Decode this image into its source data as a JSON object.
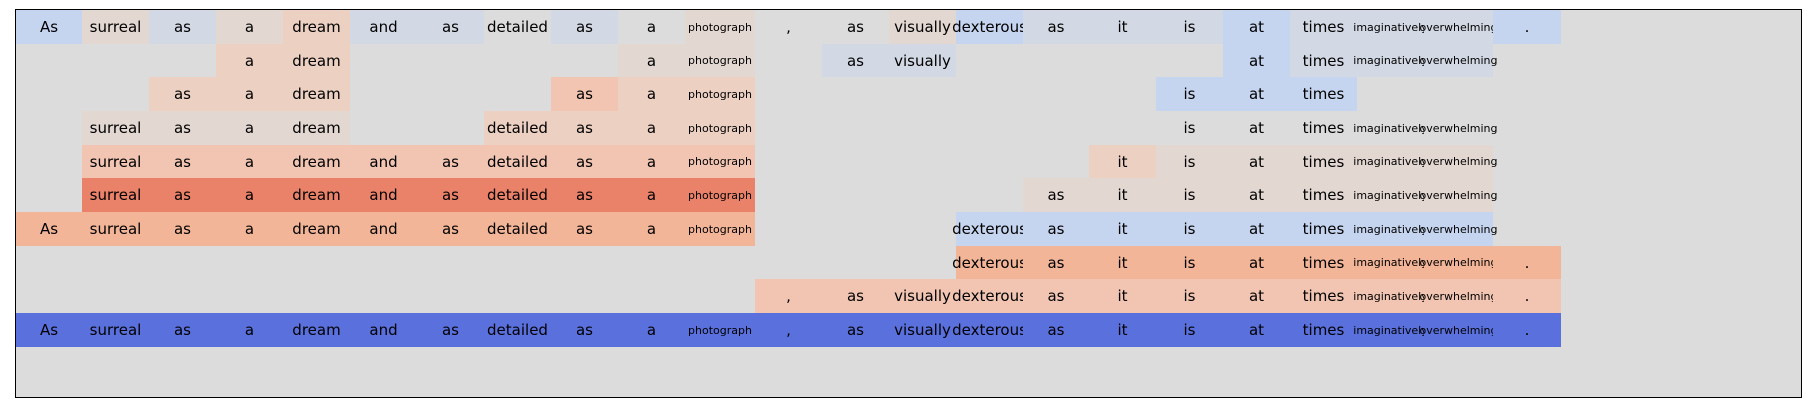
{
  "tokens": [
    "As",
    "surreal",
    "as",
    "a",
    "dream",
    "and",
    "as",
    "detailed",
    "as",
    "a",
    "photograph",
    ",",
    "as",
    "visually",
    "dexterous",
    "as",
    "it",
    "is",
    "at",
    "times",
    "imaginatively",
    "overwhelming",
    "."
  ],
  "palette": {
    "grey": "#dcdcdc",
    "lightBlue": "#c5d4ef",
    "paleBlue": "#d3d9e4",
    "paleOrange": "#e3d7d1",
    "lightOrange": "#ecd0c2",
    "orange": "#f1c5b2",
    "midOrange": "#f3b598",
    "deepOrange": "#ea826a",
    "strongBlue": "#5a70dd"
  },
  "rows": [
    {
      "cells": [
        {
          "col": 0,
          "color": "lightBlue"
        },
        {
          "col": 1,
          "color": "paleOrange"
        },
        {
          "col": 2,
          "color": "paleBlue"
        },
        {
          "col": 3,
          "color": "paleOrange"
        },
        {
          "col": 4,
          "color": "lightOrange"
        },
        {
          "col": 5,
          "color": "paleBlue"
        },
        {
          "col": 6,
          "color": "paleBlue"
        },
        {
          "col": 7,
          "color": "grey"
        },
        {
          "col": 8,
          "color": "paleBlue"
        },
        {
          "col": 9,
          "color": "grey"
        },
        {
          "col": 10,
          "color": "paleOrange"
        },
        {
          "col": 11,
          "color": "grey"
        },
        {
          "col": 12,
          "color": "grey"
        },
        {
          "col": 13,
          "color": "paleOrange"
        },
        {
          "col": 14,
          "color": "lightBlue"
        },
        {
          "col": 15,
          "color": "paleBlue"
        },
        {
          "col": 16,
          "color": "paleBlue"
        },
        {
          "col": 17,
          "color": "paleBlue"
        },
        {
          "col": 18,
          "color": "lightBlue"
        },
        {
          "col": 19,
          "color": "paleBlue"
        },
        {
          "col": 20,
          "color": "paleBlue"
        },
        {
          "col": 21,
          "color": "paleBlue"
        },
        {
          "col": 22,
          "color": "lightBlue"
        }
      ]
    },
    {
      "cells": [
        {
          "col": 3,
          "color": "lightOrange"
        },
        {
          "col": 4,
          "color": "lightOrange"
        },
        {
          "col": 9,
          "color": "paleOrange"
        },
        {
          "col": 10,
          "color": "paleOrange"
        },
        {
          "col": 12,
          "color": "paleBlue"
        },
        {
          "col": 13,
          "color": "paleBlue"
        },
        {
          "col": 18,
          "color": "lightBlue"
        },
        {
          "col": 19,
          "color": "paleBlue"
        },
        {
          "col": 20,
          "color": "paleBlue"
        },
        {
          "col": 21,
          "color": "paleBlue"
        }
      ]
    },
    {
      "cells": [
        {
          "col": 2,
          "color": "lightOrange"
        },
        {
          "col": 3,
          "color": "lightOrange"
        },
        {
          "col": 4,
          "color": "lightOrange"
        },
        {
          "col": 8,
          "color": "orange"
        },
        {
          "col": 9,
          "color": "lightOrange"
        },
        {
          "col": 10,
          "color": "lightOrange"
        },
        {
          "col": 17,
          "color": "lightBlue"
        },
        {
          "col": 18,
          "color": "lightBlue"
        },
        {
          "col": 19,
          "color": "lightBlue"
        }
      ]
    },
    {
      "cells": [
        {
          "col": 1,
          "color": "paleOrange"
        },
        {
          "col": 2,
          "color": "paleOrange"
        },
        {
          "col": 3,
          "color": "paleOrange"
        },
        {
          "col": 4,
          "color": "paleOrange"
        },
        {
          "col": 7,
          "color": "lightOrange"
        },
        {
          "col": 8,
          "color": "lightOrange"
        },
        {
          "col": 9,
          "color": "lightOrange"
        },
        {
          "col": 10,
          "color": "lightOrange"
        },
        {
          "col": 17,
          "color": "grey"
        },
        {
          "col": 18,
          "color": "grey"
        },
        {
          "col": 19,
          "color": "grey"
        },
        {
          "col": 20,
          "color": "grey"
        },
        {
          "col": 21,
          "color": "grey"
        }
      ]
    },
    {
      "cells": [
        {
          "col": 1,
          "color": "orange"
        },
        {
          "col": 2,
          "color": "orange"
        },
        {
          "col": 3,
          "color": "orange"
        },
        {
          "col": 4,
          "color": "orange"
        },
        {
          "col": 5,
          "color": "orange"
        },
        {
          "col": 6,
          "color": "orange"
        },
        {
          "col": 7,
          "color": "orange"
        },
        {
          "col": 8,
          "color": "orange"
        },
        {
          "col": 9,
          "color": "orange"
        },
        {
          "col": 10,
          "color": "orange"
        },
        {
          "col": 16,
          "color": "lightOrange"
        },
        {
          "col": 17,
          "color": "paleOrange"
        },
        {
          "col": 18,
          "color": "paleOrange"
        },
        {
          "col": 19,
          "color": "paleOrange"
        },
        {
          "col": 20,
          "color": "paleOrange"
        },
        {
          "col": 21,
          "color": "paleOrange"
        }
      ]
    },
    {
      "cells": [
        {
          "col": 1,
          "color": "deepOrange"
        },
        {
          "col": 2,
          "color": "deepOrange"
        },
        {
          "col": 3,
          "color": "deepOrange"
        },
        {
          "col": 4,
          "color": "deepOrange"
        },
        {
          "col": 5,
          "color": "deepOrange"
        },
        {
          "col": 6,
          "color": "deepOrange"
        },
        {
          "col": 7,
          "color": "deepOrange"
        },
        {
          "col": 8,
          "color": "deepOrange"
        },
        {
          "col": 9,
          "color": "deepOrange"
        },
        {
          "col": 10,
          "color": "deepOrange"
        },
        {
          "col": 15,
          "color": "paleOrange"
        },
        {
          "col": 16,
          "color": "paleOrange"
        },
        {
          "col": 17,
          "color": "paleOrange"
        },
        {
          "col": 18,
          "color": "paleOrange"
        },
        {
          "col": 19,
          "color": "paleOrange"
        },
        {
          "col": 20,
          "color": "paleOrange"
        },
        {
          "col": 21,
          "color": "paleOrange"
        }
      ]
    },
    {
      "cells": [
        {
          "col": 0,
          "color": "midOrange"
        },
        {
          "col": 1,
          "color": "midOrange"
        },
        {
          "col": 2,
          "color": "midOrange"
        },
        {
          "col": 3,
          "color": "midOrange"
        },
        {
          "col": 4,
          "color": "midOrange"
        },
        {
          "col": 5,
          "color": "midOrange"
        },
        {
          "col": 6,
          "color": "midOrange"
        },
        {
          "col": 7,
          "color": "midOrange"
        },
        {
          "col": 8,
          "color": "midOrange"
        },
        {
          "col": 9,
          "color": "midOrange"
        },
        {
          "col": 10,
          "color": "midOrange"
        },
        {
          "col": 14,
          "color": "lightBlue"
        },
        {
          "col": 15,
          "color": "lightBlue"
        },
        {
          "col": 16,
          "color": "lightBlue"
        },
        {
          "col": 17,
          "color": "lightBlue"
        },
        {
          "col": 18,
          "color": "lightBlue"
        },
        {
          "col": 19,
          "color": "lightBlue"
        },
        {
          "col": 20,
          "color": "lightBlue"
        },
        {
          "col": 21,
          "color": "lightBlue"
        }
      ]
    },
    {
      "cells": [
        {
          "col": 14,
          "color": "midOrange"
        },
        {
          "col": 15,
          "color": "midOrange"
        },
        {
          "col": 16,
          "color": "midOrange"
        },
        {
          "col": 17,
          "color": "midOrange"
        },
        {
          "col": 18,
          "color": "midOrange"
        },
        {
          "col": 19,
          "color": "midOrange"
        },
        {
          "col": 20,
          "color": "midOrange"
        },
        {
          "col": 21,
          "color": "midOrange"
        },
        {
          "col": 22,
          "color": "midOrange"
        }
      ]
    },
    {
      "cells": [
        {
          "col": 11,
          "color": "orange"
        },
        {
          "col": 12,
          "color": "orange"
        },
        {
          "col": 13,
          "color": "orange"
        },
        {
          "col": 14,
          "color": "orange"
        },
        {
          "col": 15,
          "color": "orange"
        },
        {
          "col": 16,
          "color": "orange"
        },
        {
          "col": 17,
          "color": "orange"
        },
        {
          "col": 18,
          "color": "orange"
        },
        {
          "col": 19,
          "color": "orange"
        },
        {
          "col": 20,
          "color": "orange"
        },
        {
          "col": 21,
          "color": "orange"
        },
        {
          "col": 22,
          "color": "orange"
        }
      ]
    },
    {
      "cells": [
        {
          "col": 0,
          "color": "strongBlue"
        },
        {
          "col": 1,
          "color": "strongBlue"
        },
        {
          "col": 2,
          "color": "strongBlue"
        },
        {
          "col": 3,
          "color": "strongBlue"
        },
        {
          "col": 4,
          "color": "strongBlue"
        },
        {
          "col": 5,
          "color": "strongBlue"
        },
        {
          "col": 6,
          "color": "strongBlue"
        },
        {
          "col": 7,
          "color": "strongBlue"
        },
        {
          "col": 8,
          "color": "strongBlue"
        },
        {
          "col": 9,
          "color": "strongBlue"
        },
        {
          "col": 10,
          "color": "strongBlue"
        },
        {
          "col": 11,
          "color": "strongBlue"
        },
        {
          "col": 12,
          "color": "strongBlue"
        },
        {
          "col": 13,
          "color": "strongBlue"
        },
        {
          "col": 14,
          "color": "strongBlue"
        },
        {
          "col": 15,
          "color": "strongBlue"
        },
        {
          "col": 16,
          "color": "strongBlue"
        },
        {
          "col": 17,
          "color": "strongBlue"
        },
        {
          "col": 18,
          "color": "strongBlue"
        },
        {
          "col": 19,
          "color": "strongBlue"
        },
        {
          "col": 20,
          "color": "strongBlue"
        },
        {
          "col": 21,
          "color": "strongBlue"
        },
        {
          "col": 22,
          "color": "strongBlue"
        }
      ]
    }
  ]
}
